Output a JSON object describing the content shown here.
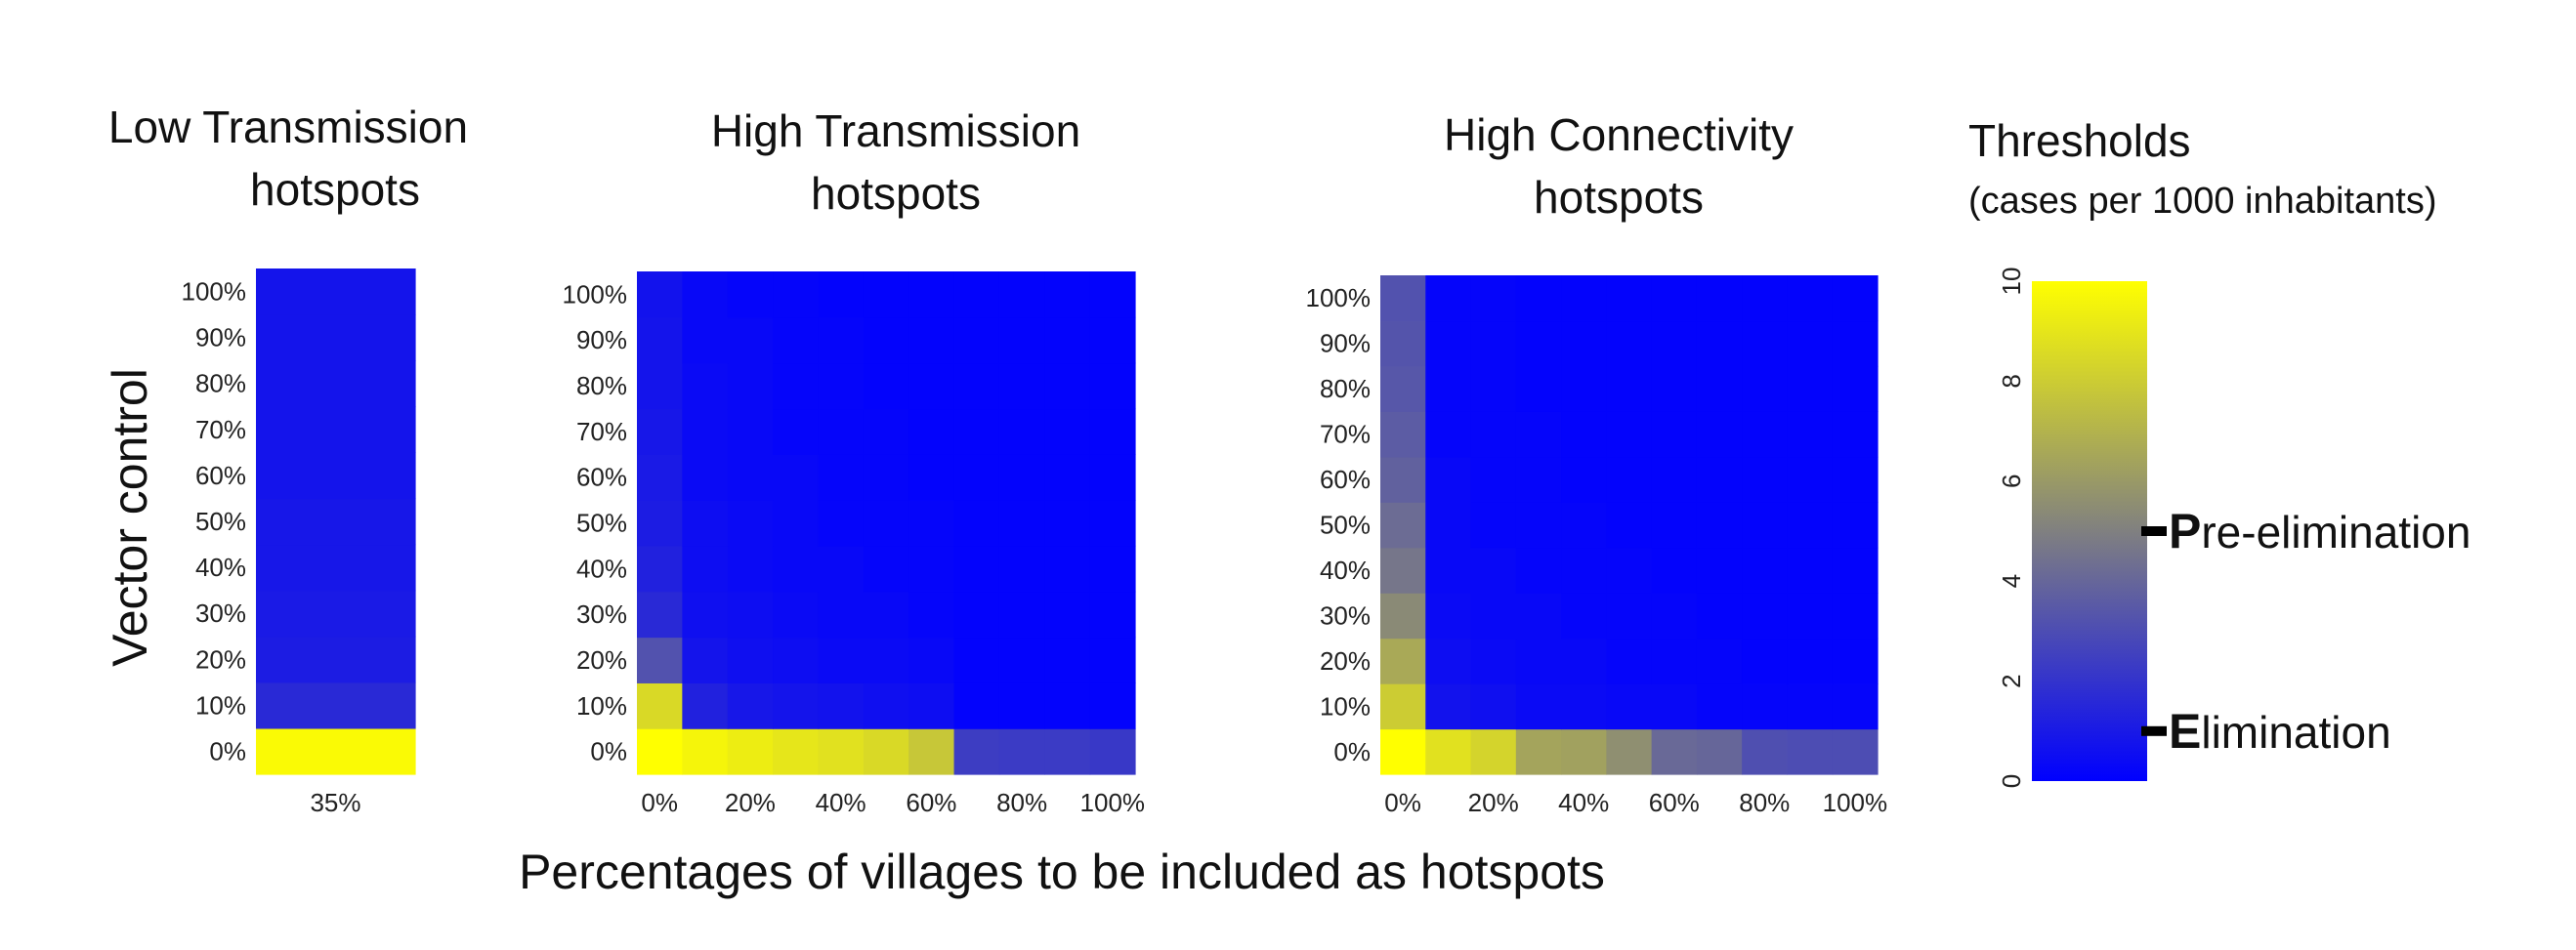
{
  "figure": {
    "ylabel": "Vector control",
    "xlabel": "Percentages of villages to be included as hotspots"
  },
  "chart_data": [
    {
      "type": "heatmap",
      "title_lines": [
        "Low Transmission",
        "hotspots"
      ],
      "x_categories": [
        "35%"
      ],
      "x_tick_labels": [
        "35%"
      ],
      "y_categories": [
        "0%",
        "10%",
        "20%",
        "30%",
        "40%",
        "50%",
        "60%",
        "70%",
        "80%",
        "90%",
        "100%"
      ],
      "values": [
        [
          9.8
        ],
        [
          1.6
        ],
        [
          1.1
        ],
        [
          1.0
        ],
        [
          0.9
        ],
        [
          0.9
        ],
        [
          0.8
        ],
        [
          0.8
        ],
        [
          0.8
        ],
        [
          0.8
        ],
        [
          0.8
        ]
      ],
      "zlim": [
        0,
        10
      ]
    },
    {
      "type": "heatmap",
      "title_lines": [
        "High Transmission",
        "hotspots"
      ],
      "x_categories": [
        "0%",
        "10%",
        "20%",
        "30%",
        "40%",
        "50%",
        "60%",
        "70%",
        "80%",
        "90%",
        "100%"
      ],
      "x_tick_labels": [
        "0%",
        "20%",
        "40%",
        "60%",
        "80%",
        "100%"
      ],
      "y_categories": [
        "0%",
        "10%",
        "20%",
        "30%",
        "40%",
        "50%",
        "60%",
        "70%",
        "80%",
        "90%",
        "100%"
      ],
      "values": [
        [
          10.0,
          9.6,
          9.3,
          9.0,
          8.8,
          8.5,
          7.8,
          2.4,
          2.3,
          2.3,
          2.2
        ],
        [
          8.5,
          1.3,
          0.9,
          0.8,
          0.7,
          0.6,
          0.5,
          0.1,
          0.1,
          0.1,
          0.1
        ],
        [
          3.2,
          0.8,
          0.6,
          0.5,
          0.4,
          0.4,
          0.3,
          0.1,
          0.1,
          0.1,
          0.1
        ],
        [
          1.6,
          0.6,
          0.5,
          0.4,
          0.3,
          0.3,
          0.2,
          0.1,
          0.1,
          0.1,
          0.1
        ],
        [
          1.3,
          0.5,
          0.4,
          0.3,
          0.3,
          0.2,
          0.2,
          0.1,
          0.1,
          0.1,
          0.1
        ],
        [
          1.1,
          0.5,
          0.4,
          0.3,
          0.2,
          0.2,
          0.2,
          0.1,
          0.1,
          0.1,
          0.1
        ],
        [
          1.0,
          0.4,
          0.3,
          0.3,
          0.2,
          0.2,
          0.1,
          0.1,
          0.1,
          0.1,
          0.1
        ],
        [
          0.9,
          0.4,
          0.3,
          0.2,
          0.2,
          0.2,
          0.1,
          0.1,
          0.1,
          0.1,
          0.1
        ],
        [
          0.8,
          0.4,
          0.3,
          0.2,
          0.2,
          0.1,
          0.1,
          0.1,
          0.1,
          0.1,
          0.1
        ],
        [
          0.8,
          0.3,
          0.3,
          0.2,
          0.2,
          0.1,
          0.1,
          0.1,
          0.1,
          0.1,
          0.1
        ],
        [
          0.7,
          0.3,
          0.2,
          0.2,
          0.1,
          0.1,
          0.1,
          0.1,
          0.1,
          0.1,
          0.1
        ]
      ],
      "zlim": [
        0,
        10
      ]
    },
    {
      "type": "heatmap",
      "title_lines": [
        "High Connectivity",
        "hotspots"
      ],
      "x_categories": [
        "0%",
        "10%",
        "20%",
        "30%",
        "40%",
        "50%",
        "60%",
        "70%",
        "80%",
        "90%",
        "100%"
      ],
      "x_tick_labels": [
        "0%",
        "20%",
        "40%",
        "60%",
        "80%",
        "100%"
      ],
      "y_categories": [
        "0%",
        "10%",
        "20%",
        "30%",
        "40%",
        "50%",
        "60%",
        "70%",
        "80%",
        "90%",
        "100%"
      ],
      "values": [
        [
          10.0,
          8.8,
          8.3,
          6.4,
          6.3,
          5.6,
          4.1,
          4.0,
          3.1,
          3.0,
          3.0
        ],
        [
          8.0,
          0.7,
          0.6,
          0.4,
          0.4,
          0.3,
          0.3,
          0.2,
          0.2,
          0.2,
          0.2
        ],
        [
          6.6,
          0.5,
          0.4,
          0.3,
          0.3,
          0.2,
          0.2,
          0.2,
          0.1,
          0.1,
          0.1
        ],
        [
          5.4,
          0.4,
          0.3,
          0.3,
          0.2,
          0.2,
          0.2,
          0.1,
          0.1,
          0.1,
          0.1
        ],
        [
          4.6,
          0.3,
          0.3,
          0.2,
          0.2,
          0.2,
          0.1,
          0.1,
          0.1,
          0.1,
          0.1
        ],
        [
          4.2,
          0.3,
          0.2,
          0.2,
          0.2,
          0.1,
          0.1,
          0.1,
          0.1,
          0.1,
          0.1
        ],
        [
          3.8,
          0.3,
          0.2,
          0.2,
          0.1,
          0.1,
          0.1,
          0.1,
          0.1,
          0.1,
          0.1
        ],
        [
          3.6,
          0.2,
          0.2,
          0.2,
          0.1,
          0.1,
          0.1,
          0.1,
          0.1,
          0.1,
          0.1
        ],
        [
          3.4,
          0.2,
          0.2,
          0.1,
          0.1,
          0.1,
          0.1,
          0.1,
          0.1,
          0.1,
          0.1
        ],
        [
          3.3,
          0.2,
          0.2,
          0.1,
          0.1,
          0.1,
          0.1,
          0.1,
          0.1,
          0.1,
          0.1
        ],
        [
          3.2,
          0.2,
          0.2,
          0.1,
          0.1,
          0.1,
          0.1,
          0.1,
          0.1,
          0.1,
          0.1
        ]
      ],
      "zlim": [
        0,
        10
      ]
    }
  ],
  "legend": {
    "title": "Thresholds",
    "subtitle": "(cases per 1000 inhabitants)",
    "zlim": [
      0,
      10
    ],
    "tick_labels": [
      "0",
      "2",
      "4",
      "6",
      "8",
      "10"
    ],
    "tick_values": [
      0,
      2,
      4,
      6,
      8,
      10
    ],
    "colors": {
      "low": "#0000ff",
      "mid": "#808080",
      "high": "#ffff00"
    },
    "thresholds": [
      {
        "value": 5,
        "initial": "P",
        "rest": "re-elimination"
      },
      {
        "value": 1,
        "initial": "E",
        "rest": "limination"
      }
    ]
  }
}
